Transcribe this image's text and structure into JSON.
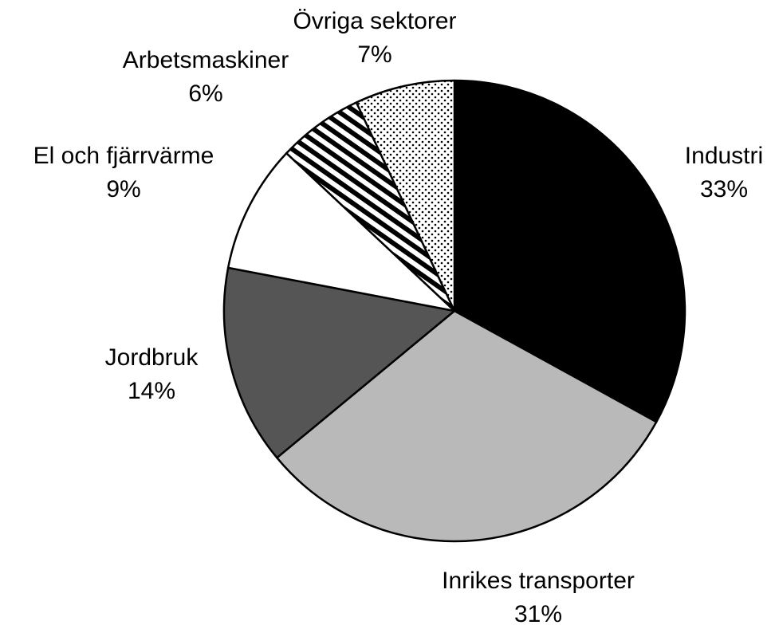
{
  "chart_data": {
    "type": "pie",
    "categories": [
      "Industri",
      "Inrikes transporter",
      "Jordbruk",
      "El och fjärrvärme",
      "Arbetsmaskiner",
      "Övriga sektorer"
    ],
    "values": [
      33,
      31,
      14,
      9,
      6,
      7
    ],
    "value_labels": [
      "33%",
      "31%",
      "14%",
      "9%",
      "6%",
      "7%"
    ],
    "colors": [
      "#000000",
      "#b9b9b9",
      "#555555",
      "#ffffff",
      "#ffffff",
      "#ffffff"
    ],
    "patterns": [
      null,
      null,
      null,
      null,
      "horizontal-stripes",
      "dots"
    ]
  }
}
